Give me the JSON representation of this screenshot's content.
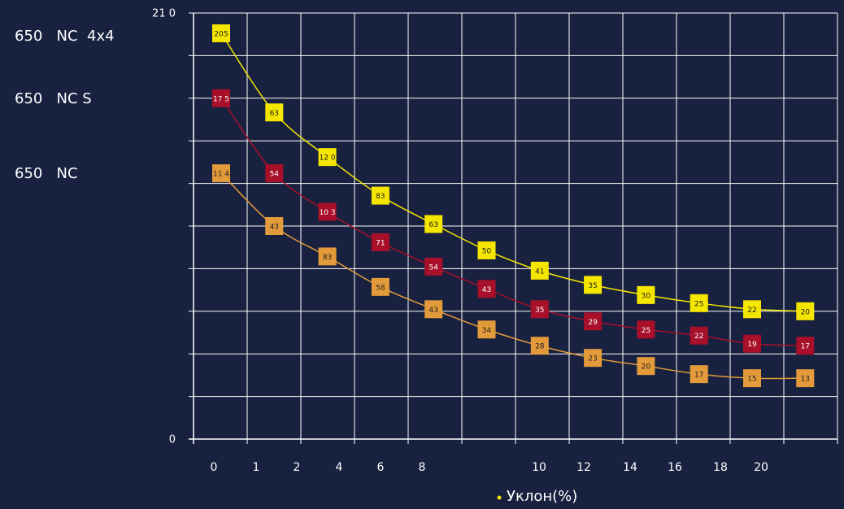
{
  "chart_data": {
    "type": "line",
    "categories": [
      null,
      null,
      null,
      null,
      null,
      null,
      null,
      null,
      null,
      null,
      null,
      null
    ],
    "series": [
      {
        "name": "650   NC  4x4",
        "color": "#f5e600",
        "values": [
          20.0,
          16.1,
          13.9,
          12.0,
          10.6,
          9.3,
          8.3,
          7.6,
          7.1,
          6.7,
          6.4,
          6.3
        ],
        "value_labels": [
          "205",
          "63",
          "12 0",
          "83",
          "63",
          "50",
          "41",
          "35",
          "30",
          "25",
          "22",
          "20"
        ]
      },
      {
        "name": "650   NC S",
        "color": "#a8102a",
        "values": [
          16.8,
          13.1,
          11.2,
          9.7,
          8.5,
          7.4,
          6.4,
          5.8,
          5.4,
          5.1,
          4.7,
          4.6
        ],
        "value_labels": [
          "17 5",
          "54",
          "10 3",
          "71",
          "54",
          "43",
          "35",
          "29",
          "25",
          "22",
          "19",
          "17"
        ]
      },
      {
        "name": "650   NC",
        "color": "#e39a3a",
        "values": [
          13.1,
          10.5,
          9.0,
          7.5,
          6.4,
          5.4,
          4.6,
          4.0,
          3.6,
          3.2,
          3.0,
          3.0
        ],
        "value_labels": [
          "11 4",
          "43",
          "83",
          "58",
          "43",
          "34",
          "28",
          "23",
          "20",
          "17",
          "15",
          "13"
        ]
      }
    ],
    "ylim": [
      0,
      21
    ],
    "yticks": [
      0,
      {
        "value": 21,
        "label": "21 0"
      }
    ],
    "xticks": [
      0,
      1,
      2,
      4,
      6,
      8,
      10,
      12,
      14,
      16,
      18,
      20
    ],
    "x_label": "Уклон(%)",
    "grid": true
  }
}
